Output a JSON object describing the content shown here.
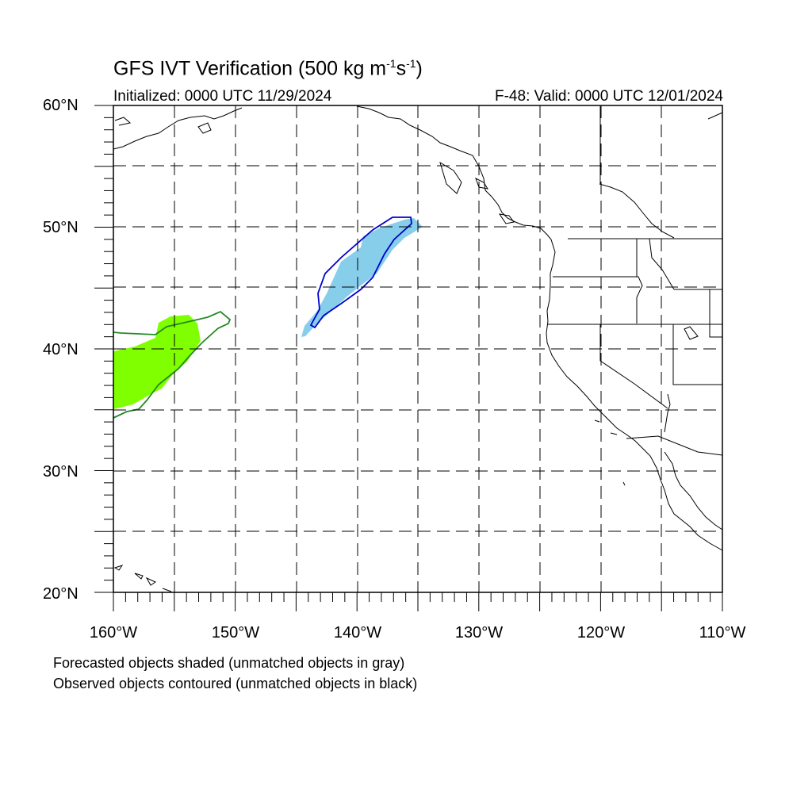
{
  "title": {
    "main": "GFS IVT Verification (500 kg m",
    "exp1": "-1",
    "mid": "s",
    "exp2": "-1",
    "end": ")"
  },
  "initialized": "Initialized: 0000 UTC 11/29/2024",
  "valid": "F-48: Valid: 0000 UTC 12/01/2024",
  "lat_labels": [
    "60°N",
    "50°N",
    "40°N",
    "30°N",
    "20°N"
  ],
  "lon_labels": [
    "160°W",
    "150°W",
    "140°W",
    "130°W",
    "120°W",
    "110°W"
  ],
  "notes": {
    "forecast": "Forecasted objects shaded (unmatched objects in gray)",
    "observed": "Observed objects contoured (unmatched objects in black)"
  },
  "map": {
    "lat_range": [
      20,
      60
    ],
    "lon_range": [
      -160,
      -110
    ],
    "grid_interval_deg": 5,
    "grid_style": "dashed",
    "colors": {
      "object1_fill": "#80ff00",
      "object1_contour": "#228b22",
      "object2_fill": "#87ceeb",
      "object2_contour": "#0000cd",
      "coastline": "#000000"
    }
  }
}
